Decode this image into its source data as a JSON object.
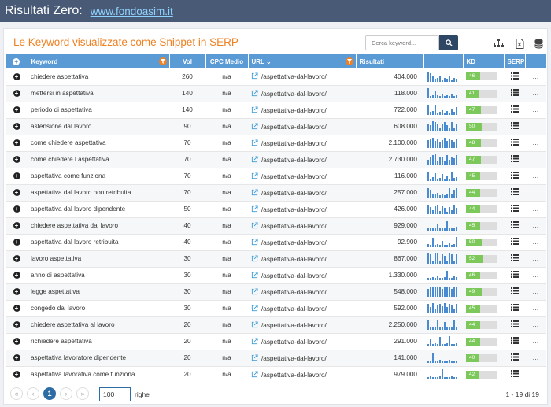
{
  "header": {
    "title": "Risultati Zero:",
    "link": "www.fondoasim.it"
  },
  "card": {
    "title": "Le Keyword visualizzate come Snippet in SERP",
    "search_placeholder": "Cerca keyword..."
  },
  "columns": {
    "keyword": "Keyword",
    "vol": "Vol",
    "cpc": "CPC Medio",
    "url": "URL",
    "results": "Risultati",
    "kd": "KD",
    "serp": "SERP"
  },
  "rows": [
    {
      "keyword": "chiedere aspettativa",
      "vol": "260",
      "cpc": "n/a",
      "url": "/aspettativa-dal-lavoro/",
      "results": "404.000",
      "kd": "46",
      "trend": [
        10,
        8,
        6,
        3,
        4,
        5,
        2,
        4,
        3,
        5,
        2,
        4,
        3
      ]
    },
    {
      "keyword": "mettersi in aspettativa",
      "vol": "140",
      "cpc": "n/a",
      "url": "/aspettativa-dal-lavoro/",
      "results": "118.000",
      "kd": "41",
      "trend": [
        10,
        2,
        3,
        8,
        3,
        2,
        5,
        2,
        3,
        2,
        4,
        2,
        3
      ]
    },
    {
      "keyword": "periodo di aspettativa",
      "vol": "140",
      "cpc": "n/a",
      "url": "/aspettativa-dal-lavoro/",
      "results": "722.000",
      "kd": "47",
      "trend": [
        10,
        3,
        4,
        9,
        2,
        3,
        5,
        2,
        4,
        2,
        6,
        3,
        8
      ]
    },
    {
      "keyword": "astensione dal lavoro",
      "vol": "90",
      "cpc": "n/a",
      "url": "/aspettativa-dal-lavoro/",
      "results": "608.000",
      "kd": "50",
      "trend": [
        8,
        6,
        10,
        9,
        7,
        3,
        8,
        9,
        6,
        3,
        9,
        4,
        8
      ]
    },
    {
      "keyword": "come chiedere aspettativa",
      "vol": "70",
      "cpc": "n/a",
      "url": "/aspettativa-dal-lavoro/",
      "results": "2.100.000",
      "kd": "48",
      "trend": [
        8,
        9,
        10,
        7,
        9,
        6,
        8,
        10,
        7,
        9,
        8,
        6,
        9
      ]
    },
    {
      "keyword": "come chiedere l aspettativa",
      "vol": "70",
      "cpc": "n/a",
      "url": "/aspettativa-dal-lavoro/",
      "results": "2.730.000",
      "kd": "47",
      "trend": [
        5,
        7,
        9,
        10,
        4,
        8,
        7,
        3,
        9,
        5,
        8,
        6,
        9
      ]
    },
    {
      "keyword": "aspettativa come funziona",
      "vol": "70",
      "cpc": "n/a",
      "url": "/aspettativa-dal-lavoro/",
      "results": "116.000",
      "kd": "45",
      "trend": [
        9,
        2,
        4,
        8,
        2,
        3,
        7,
        2,
        5,
        2,
        9,
        3,
        4
      ]
    },
    {
      "keyword": "aspettativa dal lavoro non retribuita",
      "vol": "70",
      "cpc": "n/a",
      "url": "/aspettativa-dal-lavoro/",
      "results": "257.000",
      "kd": "44",
      "trend": [
        9,
        8,
        3,
        4,
        5,
        2,
        4,
        2,
        3,
        9,
        3,
        8,
        9
      ]
    },
    {
      "keyword": "aspettativa dal lavoro dipendente",
      "vol": "50",
      "cpc": "n/a",
      "url": "/aspettativa-dal-lavoro/",
      "results": "426.000",
      "kd": "44",
      "trend": [
        9,
        7,
        4,
        8,
        9,
        3,
        8,
        6,
        2,
        7,
        4,
        9,
        6
      ]
    },
    {
      "keyword": "chiedere aspettativa dal lavoro",
      "vol": "40",
      "cpc": "n/a",
      "url": "/aspettativa-dal-lavoro/",
      "results": "929.000",
      "kd": "45",
      "trend": [
        2,
        2,
        3,
        2,
        7,
        2,
        3,
        2,
        9,
        2,
        3,
        2,
        4
      ]
    },
    {
      "keyword": "aspettativa dal lavoro retribuita",
      "vol": "40",
      "cpc": "n/a",
      "url": "/aspettativa-dal-lavoro/",
      "results": "92.900",
      "kd": "50",
      "trend": [
        3,
        2,
        9,
        2,
        3,
        2,
        6,
        2,
        2,
        4,
        2,
        3,
        10
      ]
    },
    {
      "keyword": "lavoro aspettativa",
      "vol": "30",
      "cpc": "n/a",
      "url": "/aspettativa-dal-lavoro/",
      "results": "867.000",
      "kd": "52",
      "trend": [
        10,
        9,
        2,
        10,
        10,
        2,
        9,
        8,
        2,
        10,
        9,
        2,
        9
      ]
    },
    {
      "keyword": "anno di aspettativa",
      "vol": "30",
      "cpc": "n/a",
      "url": "/aspettativa-dal-lavoro/",
      "results": "1.330.000",
      "kd": "46",
      "trend": [
        2,
        2,
        3,
        2,
        4,
        2,
        2,
        3,
        9,
        2,
        2,
        5,
        3
      ]
    },
    {
      "keyword": "legge aspettativa",
      "vol": "30",
      "cpc": "n/a",
      "url": "/aspettativa-dal-lavoro/",
      "results": "548.000",
      "kd": "49",
      "trend": [
        8,
        10,
        9,
        10,
        10,
        9,
        8,
        10,
        9,
        10,
        8,
        9,
        10
      ]
    },
    {
      "keyword": "congedo dal lavoro",
      "vol": "30",
      "cpc": "n/a",
      "url": "/aspettativa-dal-lavoro/",
      "results": "592.000",
      "kd": "45",
      "trend": [
        9,
        6,
        10,
        5,
        8,
        9,
        7,
        10,
        6,
        9,
        8,
        5,
        9
      ]
    },
    {
      "keyword": "chiedere aspettativa al lavoro",
      "vol": "20",
      "cpc": "n/a",
      "url": "/aspettativa-dal-lavoro/",
      "results": "2.250.000",
      "kd": "44",
      "trend": [
        10,
        2,
        2,
        3,
        9,
        2,
        2,
        8,
        2,
        3,
        2,
        9,
        2
      ]
    },
    {
      "keyword": "richiedere aspettativa",
      "vol": "20",
      "cpc": "n/a",
      "url": "/aspettativa-dal-lavoro/",
      "results": "291.000",
      "kd": "44",
      "trend": [
        2,
        8,
        2,
        3,
        2,
        9,
        2,
        2,
        3,
        10,
        2,
        2,
        3
      ]
    },
    {
      "keyword": "aspettativa lavoratore dipendente",
      "vol": "20",
      "cpc": "n/a",
      "url": "/aspettativa-dal-lavoro/",
      "results": "141.000",
      "kd": "40",
      "trend": [
        2,
        2,
        10,
        2,
        2,
        3,
        2,
        2,
        2,
        3,
        2,
        2,
        2
      ]
    },
    {
      "keyword": "aspettativa lavorativa come funziona",
      "vol": "20",
      "cpc": "n/a",
      "url": "/aspettativa-dal-lavoro/",
      "results": "979.000",
      "kd": "42",
      "trend": [
        2,
        3,
        2,
        2,
        2,
        3,
        10,
        2,
        2,
        2,
        3,
        2,
        2
      ]
    }
  ],
  "pagination": {
    "first": "«",
    "prev": "‹",
    "current": "1",
    "next": "›",
    "last": "»",
    "page_size": "100",
    "rows_label": "righe",
    "count": "1 - 19 di 19"
  },
  "colors": {
    "header_bar": "#495a77",
    "accent": "#f08122",
    "table_header": "#5b9bd5",
    "kd_fill": "#7dc85b",
    "trend": "#4a8ad1"
  }
}
